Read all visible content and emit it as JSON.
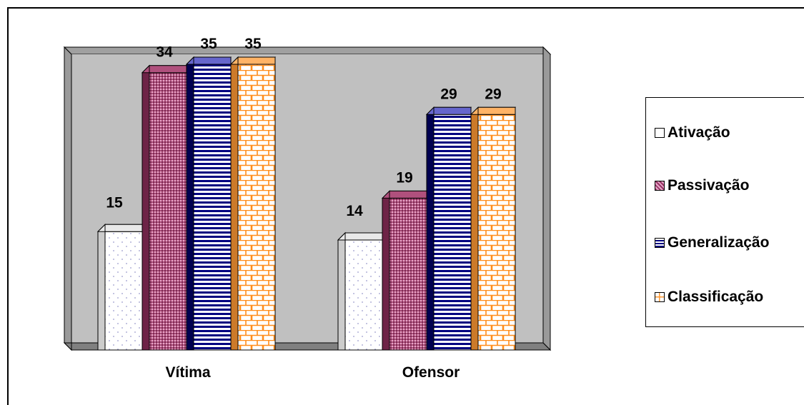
{
  "chart_data": {
    "type": "bar",
    "categories": [
      "Vítima",
      "Ofensor"
    ],
    "series": [
      {
        "name": "Ativação",
        "values": [
          15,
          14
        ],
        "color": "#ffffff",
        "pattern": "dots"
      },
      {
        "name": "Passivação",
        "values": [
          34,
          19
        ],
        "color": "#993366",
        "pattern": "grid"
      },
      {
        "name": "Generalização",
        "values": [
          35,
          29
        ],
        "color": "#000080",
        "pattern": "hstripes"
      },
      {
        "name": "Classificação",
        "values": [
          35,
          29
        ],
        "color": "#ff9933",
        "pattern": "bricks"
      }
    ],
    "ylim": [
      0,
      35
    ],
    "legend_position": "right",
    "grid": false,
    "background": "#c0c0c0"
  }
}
